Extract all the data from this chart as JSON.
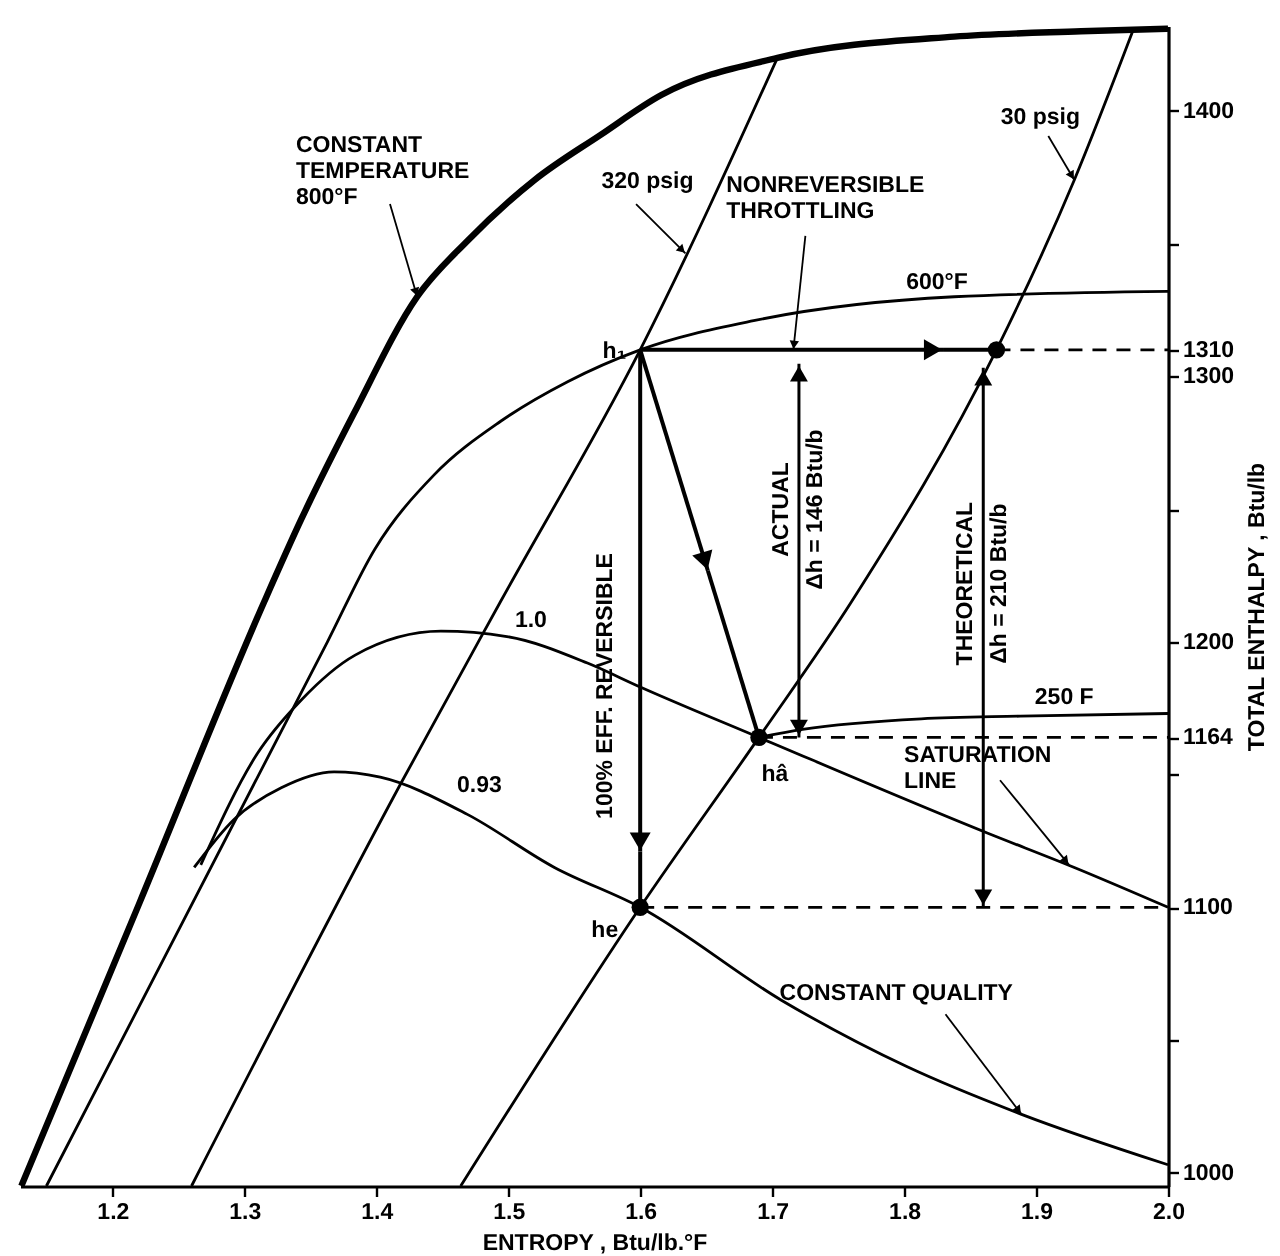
{
  "chart_data": {
    "type": "line",
    "xlabel": "ENTROPY , Btu/lb.°F",
    "ylabel": "TOTAL ENTHALPY , Btu/lb",
    "xlim": [
      1.13,
      2.0
    ],
    "ylim": [
      995,
      1432
    ],
    "xticks": [
      1.2,
      1.3,
      1.4,
      1.5,
      1.6,
      1.7,
      1.8,
      1.9,
      {
        "value": 2.0,
        "label": "2.0"
      }
    ],
    "yticks": [
      1000,
      {
        "value": 1050,
        "label": null
      },
      1100,
      {
        "value": 1150,
        "label": null
      },
      1164,
      1200,
      {
        "value": 1250,
        "label": null
      },
      1300,
      1310,
      {
        "value": 1350,
        "label": null
      },
      1400
    ],
    "grid": false,
    "series": [
      {
        "name": "CONSTANT TEMPERATURE 800°F",
        "color": "#000000",
        "x": [
          1.131,
          1.22,
          1.315,
          1.343,
          1.383,
          1.431,
          1.469,
          1.52,
          1.57,
          1.616,
          1.704,
          1.838,
          1.934,
          2.0
        ],
        "values": [
          995,
          1101,
          1215,
          1246,
          1286,
          1330,
          1351,
          1374,
          1391,
          1406,
          1420,
          1428,
          1430,
          1431
        ]
      },
      {
        "name": "600°F",
        "color": "#000000",
        "x": [
          1.15,
          1.363,
          1.399,
          1.444,
          1.494,
          1.545,
          1.6,
          1.686,
          1.838,
          2.0
        ],
        "values": [
          995,
          1200,
          1235,
          1263,
          1283,
          1298,
          1310,
          1321,
          1330,
          1332
        ]
      },
      {
        "name": "250 F",
        "color": "#000000",
        "x": [
          1.69,
          1.723,
          1.813,
          1.888,
          2.0
        ],
        "values": [
          1164,
          1167,
          1171,
          1172,
          1173
        ]
      },
      {
        "name": "320 psig",
        "color": "#000000",
        "x": [
          1.26,
          1.419,
          1.494,
          1.6,
          1.704
        ],
        "values": [
          995,
          1147,
          1215,
          1310,
          1420
        ]
      },
      {
        "name": "30 psig",
        "color": "#000000",
        "x": [
          1.464,
          1.6,
          1.69,
          1.76,
          1.87,
          1.929,
          1.974
        ],
        "values": [
          995,
          1100,
          1164,
          1215,
          1310,
          1374,
          1431
        ]
      },
      {
        "name": "1.0",
        "color": "#000000",
        "x": [
          1.267,
          1.31,
          1.343,
          1.384,
          1.449,
          1.499,
          1.56,
          1.6,
          1.69,
          1.863,
          1.929,
          2.0
        ],
        "values": [
          1116,
          1158,
          1178,
          1195,
          1204,
          1202,
          1192,
          1183,
          1164,
          1128,
          1115,
          1100
        ]
      },
      {
        "name": "0.93",
        "color": "#000000",
        "x": [
          1.262,
          1.292,
          1.328,
          1.368,
          1.403,
          1.469,
          1.535,
          1.6,
          1.707,
          1.802,
          1.889,
          2.0
        ],
        "values": [
          1115,
          1133,
          1145,
          1151,
          1149,
          1135,
          1115,
          1100,
          1065,
          1040,
          1022,
          1003
        ]
      },
      {
        "color": "#000000",
        "line_style": "dashed",
        "x": [
          1.87,
          2.0
        ],
        "values": [
          1310,
          1310
        ]
      },
      {
        "color": "#000000",
        "line_style": "dashed",
        "x": [
          1.69,
          2.0
        ],
        "values": [
          1164,
          1164
        ]
      },
      {
        "color": "#000000",
        "line_style": "dashed",
        "x": [
          1.6,
          2.0
        ],
        "values": [
          1100,
          1100
        ]
      },
      {
        "type": "scatter",
        "marker": "circle",
        "color": "#000000",
        "x": [
          1.6,
          1.69,
          1.87
        ],
        "values": [
          1100,
          1164,
          1310
        ]
      }
    ],
    "annotations": [
      {
        "text": "SATURATION LINE",
        "x": 1.925,
        "y": 1116
      },
      {
        "text": "CONSTANT QUALITY",
        "x": 1.889,
        "y": 1022
      },
      {
        "text": "h₁",
        "x": 1.6,
        "y": 1310
      },
      {
        "text": "he",
        "x": 1.6,
        "y": 1100
      },
      {
        "text": "hâ",
        "x": 1.69,
        "y": 1164
      },
      "100% EFF. REVERSIBLE",
      "NONREVERSIBLE THROTTLING",
      "ACTUAL Δh = 146 Btu/b",
      "THEORETICAL Δh = 210 Btu/b"
    ]
  }
}
